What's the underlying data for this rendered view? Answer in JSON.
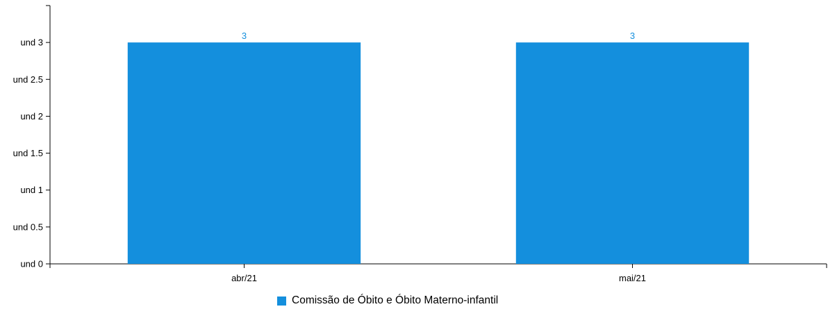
{
  "chart_data": {
    "type": "bar",
    "categories": [
      "abr/21",
      "mai/21"
    ],
    "series": [
      {
        "name": "Comissão de Óbito e Óbito Materno-infantil",
        "values": [
          3,
          3
        ],
        "color": "#148fdd"
      }
    ],
    "data_labels": [
      "3",
      "3"
    ],
    "ylim": [
      0,
      3.5
    ],
    "y_ticks": [
      0,
      0.5,
      1,
      1.5,
      2,
      2.5,
      3
    ],
    "y_tick_labels": [
      "und 0",
      "und 0.5",
      "und 1",
      "und 1.5",
      "und 2",
      "und 2.5",
      "und 3"
    ],
    "grid": false,
    "legend_position": "bottom-center"
  },
  "legend": {
    "label": "Comissão de Óbito e Óbito Materno-infantil",
    "color": "#148fdd"
  }
}
